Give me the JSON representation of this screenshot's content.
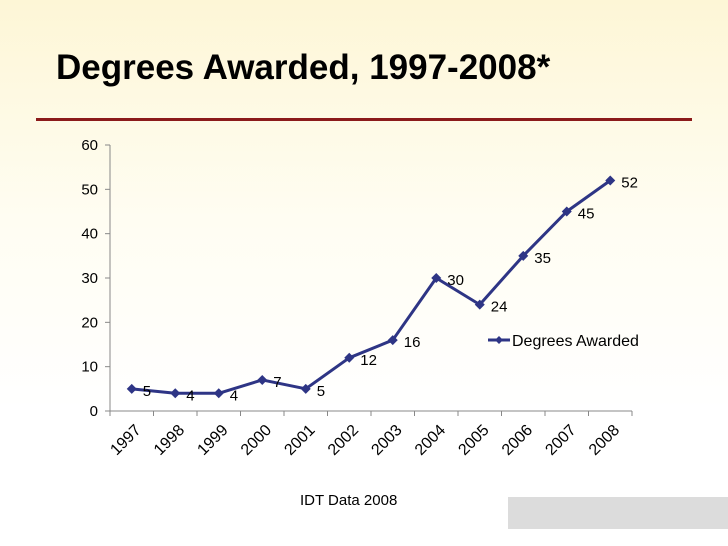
{
  "slide": {
    "title": "Degrees Awarded, 1997-2008*",
    "source": "IDT Data 2008"
  },
  "chart_data": {
    "type": "line",
    "categories": [
      "1997",
      "1998",
      "1999",
      "2000",
      "2001",
      "2002",
      "2003",
      "2004",
      "2005",
      "2006",
      "2007",
      "2008"
    ],
    "series": [
      {
        "name": "Degrees Awarded",
        "values": [
          5,
          4,
          4,
          7,
          5,
          12,
          16,
          30,
          24,
          35,
          45,
          52
        ],
        "color": "#2e3585"
      }
    ],
    "ylim": [
      0,
      60
    ],
    "yticks": [
      0,
      10,
      20,
      30,
      40,
      50,
      60
    ],
    "grid": false,
    "legend": "right",
    "xlabel": "",
    "ylabel": ""
  }
}
